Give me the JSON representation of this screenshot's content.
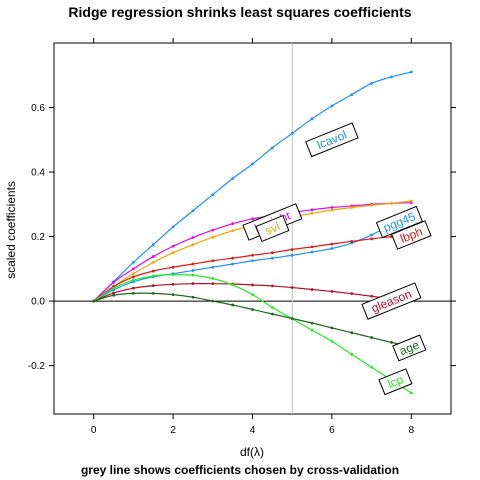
{
  "chart_data": {
    "type": "line",
    "title": "Ridge regression shrinks least squares coefficients",
    "subtitle": "grey line shows coefficients chosen by cross-validation",
    "xlabel": "df(λ)",
    "ylabel": "scaled coefficients",
    "xlim": [
      -1,
      9
    ],
    "ylim": [
      -0.35,
      0.8
    ],
    "x_ticks": [
      0,
      2,
      4,
      6,
      8
    ],
    "x_tick_labels": [
      "0",
      "2",
      "4",
      "6",
      "8"
    ],
    "y_ticks": [
      -0.2,
      0.0,
      0.2,
      0.4,
      0.6
    ],
    "y_tick_labels": [
      "-0.2",
      "0.0",
      "0.2",
      "0.4",
      "0.6"
    ],
    "grid": false,
    "reference_hline": 0,
    "reference_vline": 5,
    "x": [
      0,
      0.5,
      1,
      1.5,
      2,
      2.5,
      3,
      3.5,
      4,
      4.5,
      5,
      5.5,
      6,
      6.5,
      7,
      7.5,
      8
    ],
    "series": [
      {
        "name": "lcavol",
        "color": "#1e90ff",
        "label_at": [
          6,
          0.5
        ],
        "values": [
          0,
          0.06,
          0.12,
          0.175,
          0.23,
          0.28,
          0.33,
          0.38,
          0.425,
          0.475,
          0.52,
          0.565,
          0.605,
          0.64,
          0.675,
          0.695,
          0.71
        ]
      },
      {
        "name": "lweight",
        "color": "#e00ee0",
        "label_at": [
          4.5,
          0.245
        ],
        "values": [
          0,
          0.058,
          0.1,
          0.138,
          0.17,
          0.197,
          0.22,
          0.24,
          0.255,
          0.265,
          0.275,
          0.283,
          0.29,
          0.295,
          0.3,
          0.303,
          0.305
        ]
      },
      {
        "name": "svi",
        "color": "#f0a800",
        "label_at": [
          4.5,
          0.225
        ],
        "values": [
          0,
          0.045,
          0.085,
          0.12,
          0.15,
          0.175,
          0.198,
          0.218,
          0.235,
          0.249,
          0.261,
          0.272,
          0.282,
          0.29,
          0.297,
          0.303,
          0.31
        ]
      },
      {
        "name": "pgg45",
        "color": "#1e90ff",
        "label_at": [
          7.7,
          0.245
        ],
        "values": [
          0,
          0.035,
          0.06,
          0.075,
          0.085,
          0.095,
          0.105,
          0.115,
          0.125,
          0.133,
          0.142,
          0.152,
          0.163,
          0.18,
          0.205,
          0.24,
          0.285
        ]
      },
      {
        "name": "lbph",
        "color": "#e01818",
        "label_at": [
          8,
          0.205
        ],
        "values": [
          0,
          0.045,
          0.075,
          0.093,
          0.105,
          0.115,
          0.125,
          0.133,
          0.142,
          0.15,
          0.16,
          0.168,
          0.177,
          0.185,
          0.193,
          0.2,
          0.21
        ]
      },
      {
        "name": "gleason",
        "color": "#b0102a",
        "label_at": [
          7.5,
          0.0
        ],
        "values": [
          0,
          0.025,
          0.04,
          0.048,
          0.052,
          0.054,
          0.054,
          0.053,
          0.05,
          0.047,
          0.042,
          0.036,
          0.03,
          0.023,
          0.015,
          0.007,
          0.0
        ]
      },
      {
        "name": "lcp",
        "color": "#22ee22",
        "label_at": [
          7.6,
          -0.25
        ],
        "values": [
          0,
          0.04,
          0.065,
          0.078,
          0.082,
          0.08,
          0.07,
          0.05,
          0.02,
          -0.02,
          -0.055,
          -0.09,
          -0.125,
          -0.165,
          -0.205,
          -0.245,
          -0.285
        ]
      },
      {
        "name": "age",
        "color": "#1a6a1a",
        "label_at": [
          7.95,
          -0.145
        ],
        "values": [
          0,
          0.018,
          0.024,
          0.024,
          0.02,
          0.012,
          0.0,
          -0.012,
          -0.026,
          -0.04,
          -0.054,
          -0.068,
          -0.083,
          -0.098,
          -0.113,
          -0.128,
          -0.14
        ]
      }
    ]
  }
}
